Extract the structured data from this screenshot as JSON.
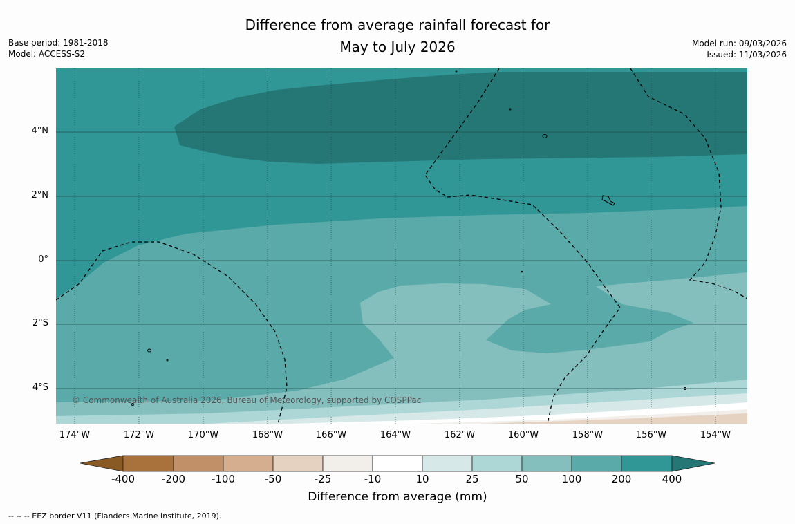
{
  "title": {
    "line1": "Difference from average rainfall forecast for",
    "line2": "May to July 2026"
  },
  "meta_left": {
    "base_period": "Base period: 1981-2018",
    "model": "Model: ACCESS-S2"
  },
  "meta_right": {
    "model_run": "Model run: 09/03/2026",
    "issued": "Issued: 11/03/2026"
  },
  "map": {
    "lat_labels": [
      "4°N",
      "2°N",
      "0°",
      "2°S",
      "4°S"
    ],
    "lon_labels": [
      "174°W",
      "172°W",
      "170°W",
      "168°W",
      "166°W",
      "164°W",
      "162°W",
      "160°W",
      "158°W",
      "156°W",
      "154°W"
    ],
    "copyright": "© Commonwealth of Australia 2026, Bureau of Meteorology, supported by COSPPac"
  },
  "colorbar": {
    "ticks": [
      "-400",
      "-200",
      "-100",
      "-50",
      "-25",
      "-10",
      "10",
      "25",
      "50",
      "100",
      "200",
      "400"
    ],
    "colors": {
      "lt_neg400": "#8a5a24",
      "neg400_200": "#a9713c",
      "neg200_100": "#c19068",
      "neg100_50": "#d4ae8e",
      "neg50_25": "#e5d2c0",
      "neg25_10": "#f2eeea",
      "neg10_10": "#ffffff",
      "p10_25": "#d6e9e8",
      "p25_50": "#acd7d6",
      "p50_100": "#84bfbe",
      "p100_200": "#5aaaaa",
      "p200_400": "#319796",
      "gt400": "#257776"
    },
    "label": "Difference from average (mm)"
  },
  "footnote": "--  --  -- EEZ border V11 (Flanders Marine Institute, 2019)."
}
